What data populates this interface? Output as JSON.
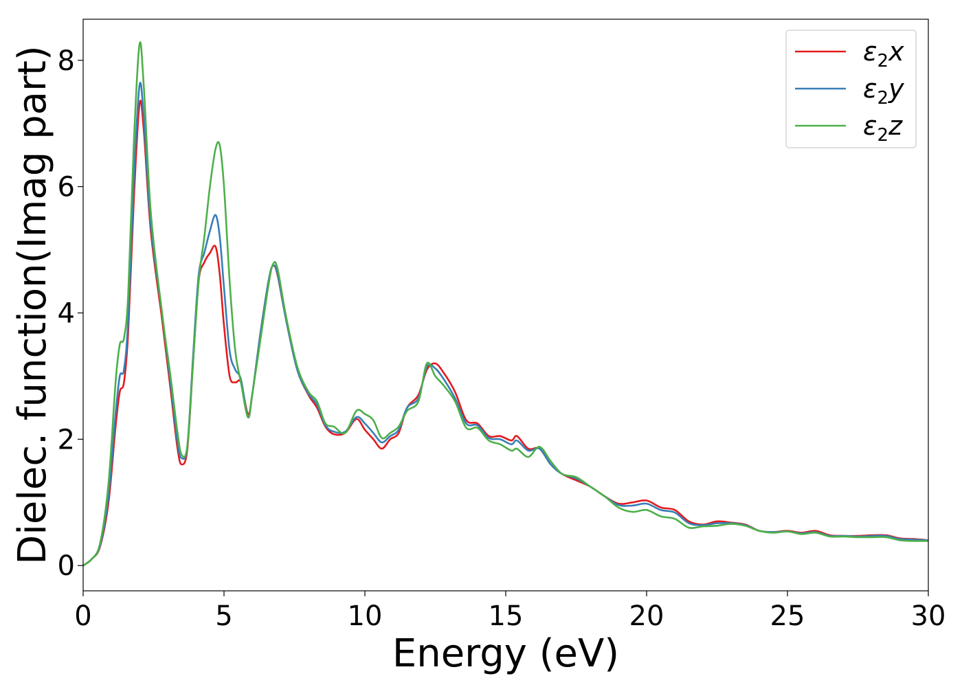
{
  "chart_data": {
    "type": "line",
    "xlabel": "Energy (eV)",
    "ylabel": "Dielec. function(Imag part)",
    "xlim": [
      0,
      30
    ],
    "ylim": [
      -0.4,
      8.65
    ],
    "xticks": [
      0,
      5,
      10,
      15,
      20,
      25,
      30
    ],
    "xtick_labels": [
      "0",
      "5",
      "10",
      "15",
      "20",
      "25",
      "30"
    ],
    "yticks": [
      0,
      2,
      4,
      6,
      8
    ],
    "ytick_labels": [
      "0",
      "2",
      "4",
      "6",
      "8"
    ],
    "grid": false,
    "legend_position": "top-right",
    "series": [
      {
        "name": "ε₂x",
        "legend_base": "ε",
        "legend_sub": "2",
        "legend_suffix": "x",
        "color": "#e41a1c",
        "points": [
          [
            0,
            0
          ],
          [
            0.3,
            0.1
          ],
          [
            0.6,
            0.3
          ],
          [
            0.9,
            1.0
          ],
          [
            1.15,
            2.2
          ],
          [
            1.3,
            2.75
          ],
          [
            1.45,
            2.9
          ],
          [
            1.6,
            3.7
          ],
          [
            1.8,
            5.8
          ],
          [
            2.0,
            7.3
          ],
          [
            2.15,
            6.9
          ],
          [
            2.4,
            5.3
          ],
          [
            2.8,
            3.9
          ],
          [
            3.1,
            2.8
          ],
          [
            3.35,
            1.85
          ],
          [
            3.5,
            1.6
          ],
          [
            3.7,
            1.85
          ],
          [
            3.9,
            3.2
          ],
          [
            4.1,
            4.5
          ],
          [
            4.3,
            4.8
          ],
          [
            4.5,
            4.95
          ],
          [
            4.7,
            5.05
          ],
          [
            4.85,
            4.6
          ],
          [
            5.0,
            3.8
          ],
          [
            5.2,
            3.0
          ],
          [
            5.4,
            2.9
          ],
          [
            5.6,
            2.9
          ],
          [
            5.85,
            2.4
          ],
          [
            6.0,
            2.7
          ],
          [
            6.3,
            3.7
          ],
          [
            6.6,
            4.55
          ],
          [
            6.75,
            4.75
          ],
          [
            6.9,
            4.6
          ],
          [
            7.2,
            3.9
          ],
          [
            7.6,
            3.1
          ],
          [
            8.0,
            2.7
          ],
          [
            8.3,
            2.5
          ],
          [
            8.6,
            2.2
          ],
          [
            8.9,
            2.08
          ],
          [
            9.3,
            2.1
          ],
          [
            9.7,
            2.32
          ],
          [
            10.0,
            2.15
          ],
          [
            10.3,
            2.0
          ],
          [
            10.6,
            1.85
          ],
          [
            10.9,
            2.0
          ],
          [
            11.2,
            2.1
          ],
          [
            11.5,
            2.5
          ],
          [
            11.9,
            2.7
          ],
          [
            12.2,
            3.1
          ],
          [
            12.5,
            3.2
          ],
          [
            12.8,
            3.05
          ],
          [
            13.2,
            2.75
          ],
          [
            13.6,
            2.3
          ],
          [
            14.0,
            2.25
          ],
          [
            14.4,
            2.05
          ],
          [
            14.8,
            2.05
          ],
          [
            15.2,
            1.98
          ],
          [
            15.4,
            2.05
          ],
          [
            15.8,
            1.85
          ],
          [
            16.2,
            1.85
          ],
          [
            16.6,
            1.6
          ],
          [
            17.0,
            1.45
          ],
          [
            17.5,
            1.35
          ],
          [
            18.0,
            1.25
          ],
          [
            18.5,
            1.1
          ],
          [
            19.0,
            0.98
          ],
          [
            19.5,
            1.0
          ],
          [
            20.0,
            1.03
          ],
          [
            20.5,
            0.92
          ],
          [
            21.0,
            0.88
          ],
          [
            21.5,
            0.7
          ],
          [
            22.0,
            0.65
          ],
          [
            22.5,
            0.7
          ],
          [
            23.0,
            0.68
          ],
          [
            23.5,
            0.65
          ],
          [
            24.0,
            0.55
          ],
          [
            24.5,
            0.53
          ],
          [
            25.0,
            0.55
          ],
          [
            25.5,
            0.52
          ],
          [
            26.0,
            0.55
          ],
          [
            26.5,
            0.48
          ],
          [
            27.0,
            0.47
          ],
          [
            27.5,
            0.47
          ],
          [
            28.0,
            0.48
          ],
          [
            28.5,
            0.48
          ],
          [
            29.0,
            0.43
          ],
          [
            29.5,
            0.42
          ],
          [
            30.0,
            0.4
          ]
        ]
      },
      {
        "name": "ε₂y",
        "legend_base": "ε",
        "legend_sub": "2",
        "legend_suffix": "y",
        "color": "#377eb8",
        "points": [
          [
            0,
            0
          ],
          [
            0.3,
            0.1
          ],
          [
            0.6,
            0.32
          ],
          [
            0.9,
            1.1
          ],
          [
            1.15,
            2.4
          ],
          [
            1.3,
            3.0
          ],
          [
            1.45,
            3.1
          ],
          [
            1.6,
            3.9
          ],
          [
            1.8,
            6.1
          ],
          [
            2.0,
            7.6
          ],
          [
            2.15,
            7.1
          ],
          [
            2.4,
            5.4
          ],
          [
            2.8,
            4.0
          ],
          [
            3.1,
            2.9
          ],
          [
            3.35,
            1.95
          ],
          [
            3.5,
            1.7
          ],
          [
            3.7,
            1.9
          ],
          [
            3.9,
            3.3
          ],
          [
            4.1,
            4.6
          ],
          [
            4.3,
            4.95
          ],
          [
            4.5,
            5.3
          ],
          [
            4.7,
            5.55
          ],
          [
            4.85,
            5.2
          ],
          [
            5.0,
            4.4
          ],
          [
            5.2,
            3.4
          ],
          [
            5.4,
            3.1
          ],
          [
            5.6,
            2.95
          ],
          [
            5.85,
            2.35
          ],
          [
            6.0,
            2.7
          ],
          [
            6.3,
            3.7
          ],
          [
            6.6,
            4.55
          ],
          [
            6.75,
            4.75
          ],
          [
            6.9,
            4.62
          ],
          [
            7.2,
            3.9
          ],
          [
            7.6,
            3.1
          ],
          [
            8.0,
            2.72
          ],
          [
            8.3,
            2.55
          ],
          [
            8.6,
            2.22
          ],
          [
            8.9,
            2.12
          ],
          [
            9.3,
            2.12
          ],
          [
            9.7,
            2.35
          ],
          [
            10.0,
            2.25
          ],
          [
            10.3,
            2.1
          ],
          [
            10.6,
            1.95
          ],
          [
            10.9,
            2.05
          ],
          [
            11.2,
            2.15
          ],
          [
            11.5,
            2.5
          ],
          [
            11.9,
            2.65
          ],
          [
            12.2,
            3.15
          ],
          [
            12.5,
            3.12
          ],
          [
            12.8,
            2.95
          ],
          [
            13.2,
            2.65
          ],
          [
            13.6,
            2.25
          ],
          [
            14.0,
            2.22
          ],
          [
            14.4,
            2.02
          ],
          [
            14.8,
            2.0
          ],
          [
            15.2,
            1.92
          ],
          [
            15.4,
            1.98
          ],
          [
            15.8,
            1.82
          ],
          [
            16.2,
            1.85
          ],
          [
            16.6,
            1.6
          ],
          [
            17.0,
            1.45
          ],
          [
            17.5,
            1.38
          ],
          [
            18.0,
            1.25
          ],
          [
            18.5,
            1.1
          ],
          [
            19.0,
            0.96
          ],
          [
            19.5,
            0.95
          ],
          [
            20.0,
            0.98
          ],
          [
            20.5,
            0.88
          ],
          [
            21.0,
            0.84
          ],
          [
            21.5,
            0.67
          ],
          [
            22.0,
            0.64
          ],
          [
            22.5,
            0.67
          ],
          [
            23.0,
            0.67
          ],
          [
            23.5,
            0.64
          ],
          [
            24.0,
            0.55
          ],
          [
            24.5,
            0.53
          ],
          [
            25.0,
            0.54
          ],
          [
            25.5,
            0.51
          ],
          [
            26.0,
            0.53
          ],
          [
            26.5,
            0.47
          ],
          [
            27.0,
            0.47
          ],
          [
            27.5,
            0.46
          ],
          [
            28.0,
            0.47
          ],
          [
            28.5,
            0.47
          ],
          [
            29.0,
            0.42
          ],
          [
            29.5,
            0.41
          ],
          [
            30.0,
            0.4
          ]
        ]
      },
      {
        "name": "ε₂z",
        "legend_base": "ε",
        "legend_sub": "2",
        "legend_suffix": "z",
        "color": "#4daf4a",
        "points": [
          [
            0,
            0
          ],
          [
            0.3,
            0.1
          ],
          [
            0.6,
            0.35
          ],
          [
            0.9,
            1.3
          ],
          [
            1.15,
            2.9
          ],
          [
            1.3,
            3.5
          ],
          [
            1.45,
            3.6
          ],
          [
            1.6,
            4.3
          ],
          [
            1.8,
            6.7
          ],
          [
            2.0,
            8.25
          ],
          [
            2.15,
            7.6
          ],
          [
            2.4,
            5.6
          ],
          [
            2.8,
            4.0
          ],
          [
            3.1,
            3.0
          ],
          [
            3.35,
            2.1
          ],
          [
            3.5,
            1.75
          ],
          [
            3.7,
            1.9
          ],
          [
            3.9,
            3.2
          ],
          [
            4.1,
            4.5
          ],
          [
            4.3,
            5.2
          ],
          [
            4.5,
            6.0
          ],
          [
            4.7,
            6.6
          ],
          [
            4.85,
            6.65
          ],
          [
            5.0,
            6.0
          ],
          [
            5.2,
            4.5
          ],
          [
            5.4,
            3.4
          ],
          [
            5.6,
            2.9
          ],
          [
            5.85,
            2.35
          ],
          [
            6.0,
            2.7
          ],
          [
            6.3,
            3.6
          ],
          [
            6.6,
            4.5
          ],
          [
            6.75,
            4.78
          ],
          [
            6.9,
            4.7
          ],
          [
            7.2,
            3.95
          ],
          [
            7.6,
            3.15
          ],
          [
            8.0,
            2.75
          ],
          [
            8.3,
            2.6
          ],
          [
            8.6,
            2.25
          ],
          [
            8.9,
            2.2
          ],
          [
            9.3,
            2.1
          ],
          [
            9.7,
            2.45
          ],
          [
            10.0,
            2.4
          ],
          [
            10.3,
            2.3
          ],
          [
            10.6,
            2.02
          ],
          [
            10.9,
            2.1
          ],
          [
            11.2,
            2.2
          ],
          [
            11.5,
            2.45
          ],
          [
            11.9,
            2.6
          ],
          [
            12.2,
            3.2
          ],
          [
            12.5,
            3.0
          ],
          [
            12.8,
            2.85
          ],
          [
            13.2,
            2.6
          ],
          [
            13.6,
            2.18
          ],
          [
            14.0,
            2.18
          ],
          [
            14.4,
            1.98
          ],
          [
            14.8,
            1.92
          ],
          [
            15.2,
            1.82
          ],
          [
            15.4,
            1.85
          ],
          [
            15.8,
            1.72
          ],
          [
            16.2,
            1.88
          ],
          [
            16.6,
            1.65
          ],
          [
            17.0,
            1.45
          ],
          [
            17.5,
            1.4
          ],
          [
            18.0,
            1.25
          ],
          [
            18.5,
            1.1
          ],
          [
            19.0,
            0.92
          ],
          [
            19.5,
            0.85
          ],
          [
            20.0,
            0.88
          ],
          [
            20.5,
            0.78
          ],
          [
            21.0,
            0.74
          ],
          [
            21.5,
            0.6
          ],
          [
            22.0,
            0.62
          ],
          [
            22.5,
            0.63
          ],
          [
            23.0,
            0.66
          ],
          [
            23.5,
            0.63
          ],
          [
            24.0,
            0.55
          ],
          [
            24.5,
            0.52
          ],
          [
            25.0,
            0.54
          ],
          [
            25.5,
            0.5
          ],
          [
            26.0,
            0.52
          ],
          [
            26.5,
            0.46
          ],
          [
            27.0,
            0.46
          ],
          [
            27.5,
            0.45
          ],
          [
            28.0,
            0.45
          ],
          [
            28.5,
            0.45
          ],
          [
            29.0,
            0.4
          ],
          [
            29.5,
            0.39
          ],
          [
            30.0,
            0.39
          ]
        ]
      }
    ]
  }
}
